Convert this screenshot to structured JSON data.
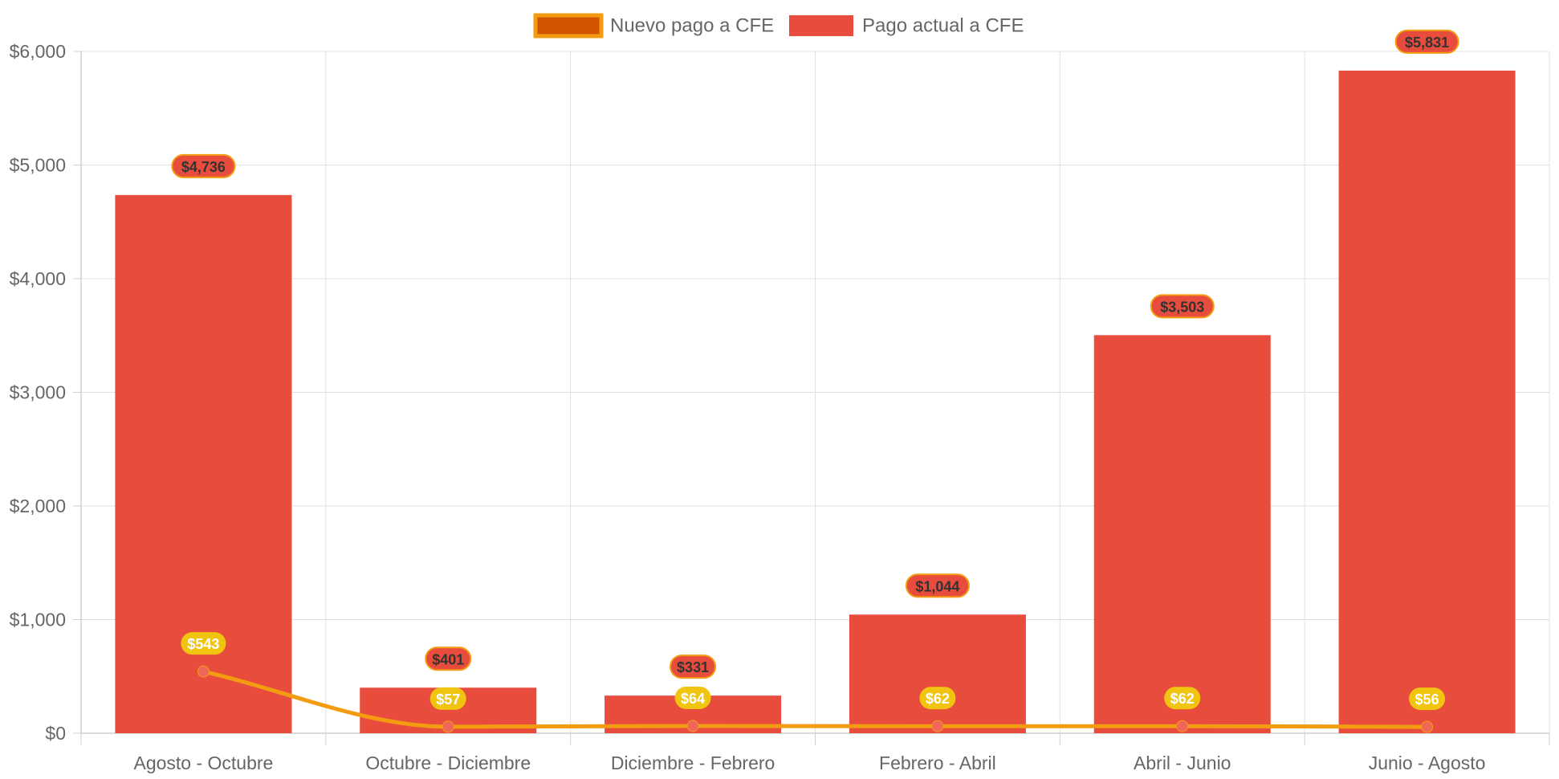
{
  "chart_data": {
    "type": "bar",
    "title": "",
    "xlabel": "",
    "ylabel": "",
    "categories": [
      "Agosto - Octubre",
      "Octubre - Diciembre",
      "Diciembre - Febrero",
      "Febrero - Abril",
      "Abril - Junio",
      "Junio - Agosto"
    ],
    "ylim": [
      0,
      6000
    ],
    "y_ticks": [
      0,
      1000,
      2000,
      3000,
      4000,
      5000,
      6000
    ],
    "y_tick_labels": [
      "$0",
      "$1,000",
      "$2,000",
      "$3,000",
      "$4,000",
      "$5,000",
      "$6,000"
    ],
    "grid": true,
    "legend_position": "top-center",
    "series": [
      {
        "name": "Nuevo pago a CFE",
        "type": "line",
        "color": "#f39c12",
        "legend_fill": "#d35400",
        "point_color": "#f1665a",
        "label_bg": "#f1c40f",
        "label_color": "#ffffff",
        "values": [
          543,
          57,
          64,
          62,
          62,
          56
        ],
        "labels": [
          "$543",
          "$57",
          "$64",
          "$62",
          "$62",
          "$56"
        ]
      },
      {
        "name": "Pago actual a CFE",
        "type": "bar",
        "color": "#e74c3c",
        "label_bg": "#e74c3c",
        "label_border": "#f39c12",
        "label_color": "#333333",
        "values": [
          4736,
          401,
          331,
          1044,
          3503,
          5831
        ],
        "labels": [
          "$4,736",
          "$401",
          "$331",
          "$1,044",
          "$3,503",
          "$5,831"
        ]
      }
    ]
  }
}
